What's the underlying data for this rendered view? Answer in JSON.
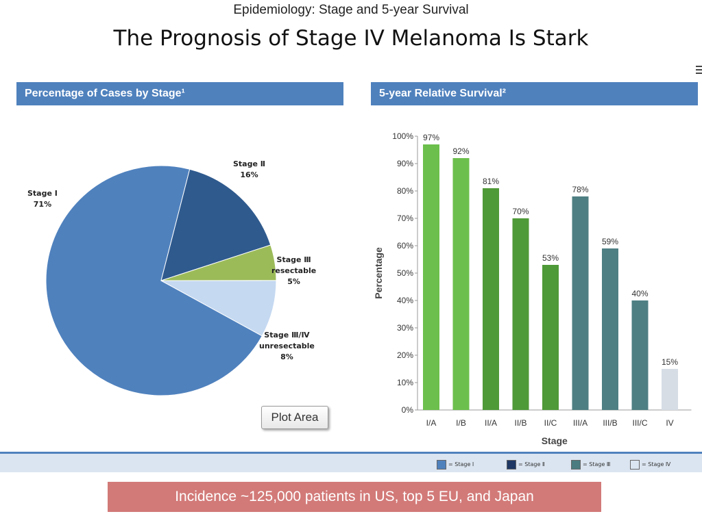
{
  "supertitle": "Epidemiology: Stage and 5-year Survival",
  "title": "The Prognosis of Stage IV Melanoma Is Stark",
  "left_panel": {
    "header": "Percentage of Cases by Stage¹"
  },
  "right_panel": {
    "header": "5-year Relative Survival²"
  },
  "plot_area_label": "Plot Area",
  "footer": "Incidence ~125,000 patients in US, top 5 EU, and Japan",
  "legend": [
    {
      "label": "= Stage Ⅰ",
      "color": "#4f81bd"
    },
    {
      "label": "= Stage Ⅱ",
      "color": "#1f3864"
    },
    {
      "label": "= Stage Ⅲ",
      "color": "#4a7c80"
    },
    {
      "label": "= Stage Ⅳ",
      "color": "#dbe5f1"
    }
  ],
  "chart_data": [
    {
      "type": "pie",
      "title": "Percentage of Cases by Stage¹",
      "slices": [
        {
          "label_lines": [
            "Stage Ⅰ",
            "71%"
          ],
          "value": 71,
          "color": "#4f81bd"
        },
        {
          "label_lines": [
            "Stage Ⅱ",
            "16%"
          ],
          "value": 16,
          "color": "#2f5a8e"
        },
        {
          "label_lines": [
            "Stage Ⅲ",
            "resectable",
            "5%"
          ],
          "value": 5,
          "color": "#9bbb59"
        },
        {
          "label_lines": [
            "Stage Ⅲ/Ⅳ",
            "unresectable",
            "8%"
          ],
          "value": 8,
          "color": "#c5d9f1"
        }
      ]
    },
    {
      "type": "bar",
      "title": "5-year Relative Survival²",
      "categories": [
        "I/A",
        "I/B",
        "II/A",
        "II/B",
        "II/C",
        "III/A",
        "III/B",
        "III/C",
        "IV"
      ],
      "values": [
        97,
        92,
        81,
        70,
        53,
        78,
        59,
        40,
        15
      ],
      "data_labels": [
        "97%",
        "92%",
        "81%",
        "70%",
        "53%",
        "78%",
        "59%",
        "40%",
        "15%"
      ],
      "colors": [
        "#6cbf4c",
        "#6cbf4c",
        "#4f9a38",
        "#4f9a38",
        "#4f9a38",
        "#4e7f83",
        "#4e7f83",
        "#4e7f83",
        "#d6dde5"
      ],
      "xlabel": "Stage",
      "ylabel": "Percentage",
      "ylim": [
        0,
        100
      ],
      "yticks": [
        "0%",
        "10%",
        "20%",
        "30%",
        "40%",
        "50%",
        "60%",
        "70%",
        "80%",
        "90%",
        "100%"
      ],
      "grid": false
    }
  ]
}
